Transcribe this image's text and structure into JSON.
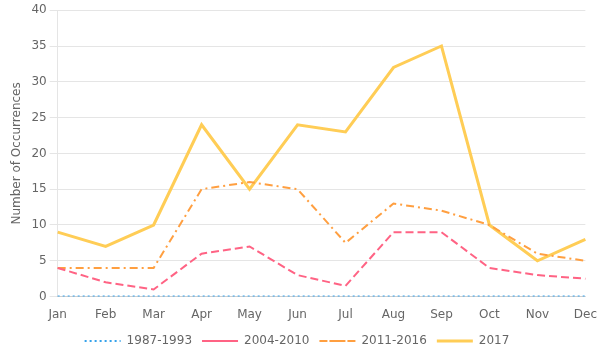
{
  "chart_data": {
    "type": "line",
    "y_label": "Number of Occurrences",
    "categories": [
      "Jan",
      "Feb",
      "Mar",
      "Apr",
      "May",
      "Jun",
      "Jul",
      "Aug",
      "Sep",
      "Oct",
      "Nov",
      "Dec"
    ],
    "series": [
      {
        "name": "1987-1993",
        "line_style": "dotted",
        "values": [
          0,
          0,
          0,
          0,
          0,
          0,
          0,
          0,
          0,
          0,
          0,
          0
        ]
      },
      {
        "name": "2004-2010",
        "line_style": "dashed",
        "values": [
          4,
          2,
          1,
          6,
          7,
          3,
          1.5,
          9,
          9,
          4,
          3,
          2.5
        ]
      },
      {
        "name": "2011-2016",
        "line_style": "dashdot",
        "values": [
          4,
          4,
          4,
          15,
          16,
          15,
          7.5,
          13,
          12,
          10,
          6,
          5
        ]
      },
      {
        "name": "2017",
        "line_style": "solid",
        "values": [
          9,
          7,
          10,
          24,
          15,
          24,
          23,
          32,
          35,
          10,
          5,
          8
        ]
      }
    ],
    "ylim": [
      0,
      40
    ],
    "yticks": [
      0,
      5,
      10,
      15,
      20,
      25,
      30,
      35,
      40
    ],
    "grid": "y",
    "legend": "bottom"
  }
}
